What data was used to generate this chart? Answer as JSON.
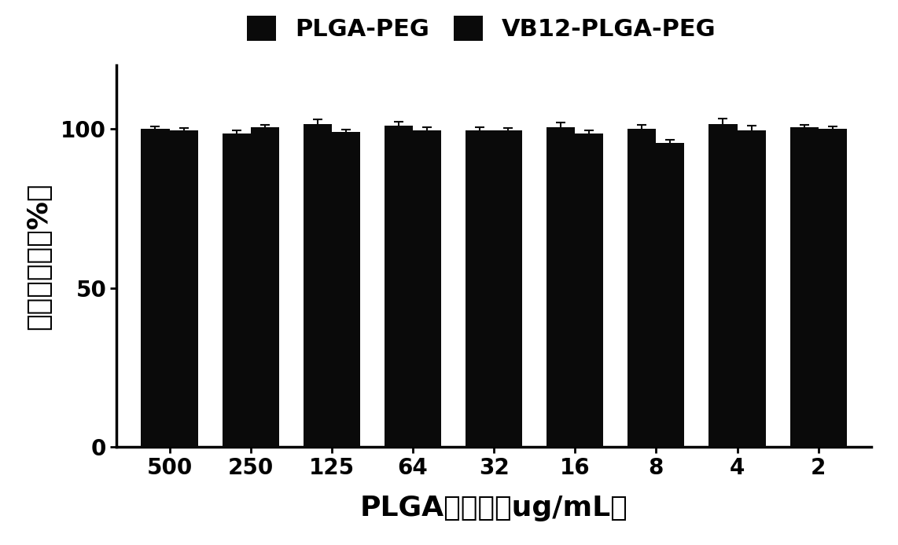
{
  "categories": [
    "500",
    "250",
    "125",
    "64",
    "32",
    "16",
    "8",
    "4",
    "2"
  ],
  "plga_peg_values": [
    100.0,
    98.5,
    101.5,
    101.0,
    99.5,
    100.5,
    100.0,
    101.5,
    100.5
  ],
  "plga_peg_errors": [
    0.8,
    1.0,
    1.5,
    1.2,
    1.0,
    1.5,
    1.2,
    1.8,
    0.8
  ],
  "vb12_values": [
    99.5,
    100.5,
    99.0,
    99.5,
    99.5,
    98.5,
    95.5,
    99.5,
    100.0
  ],
  "vb12_errors": [
    0.8,
    0.8,
    0.8,
    1.0,
    0.8,
    1.0,
    1.0,
    1.5,
    0.8
  ],
  "bar_color": "#0a0a0a",
  "bar_width": 0.35,
  "ylabel": "细胞存活率（%）",
  "xlabel": "PLGA的浓度（ug/mL）",
  "ylim": [
    0,
    120
  ],
  "yticks": [
    0,
    50,
    100
  ],
  "legend_labels": [
    "PLGA-PEG",
    "VB12-PLGA-PEG"
  ],
  "legend_fontsize": 22,
  "axis_label_fontsize": 26,
  "tick_fontsize": 20,
  "background_color": "#ffffff",
  "capsize": 4,
  "elinewidth": 1.5,
  "ecolor": "#0a0a0a"
}
